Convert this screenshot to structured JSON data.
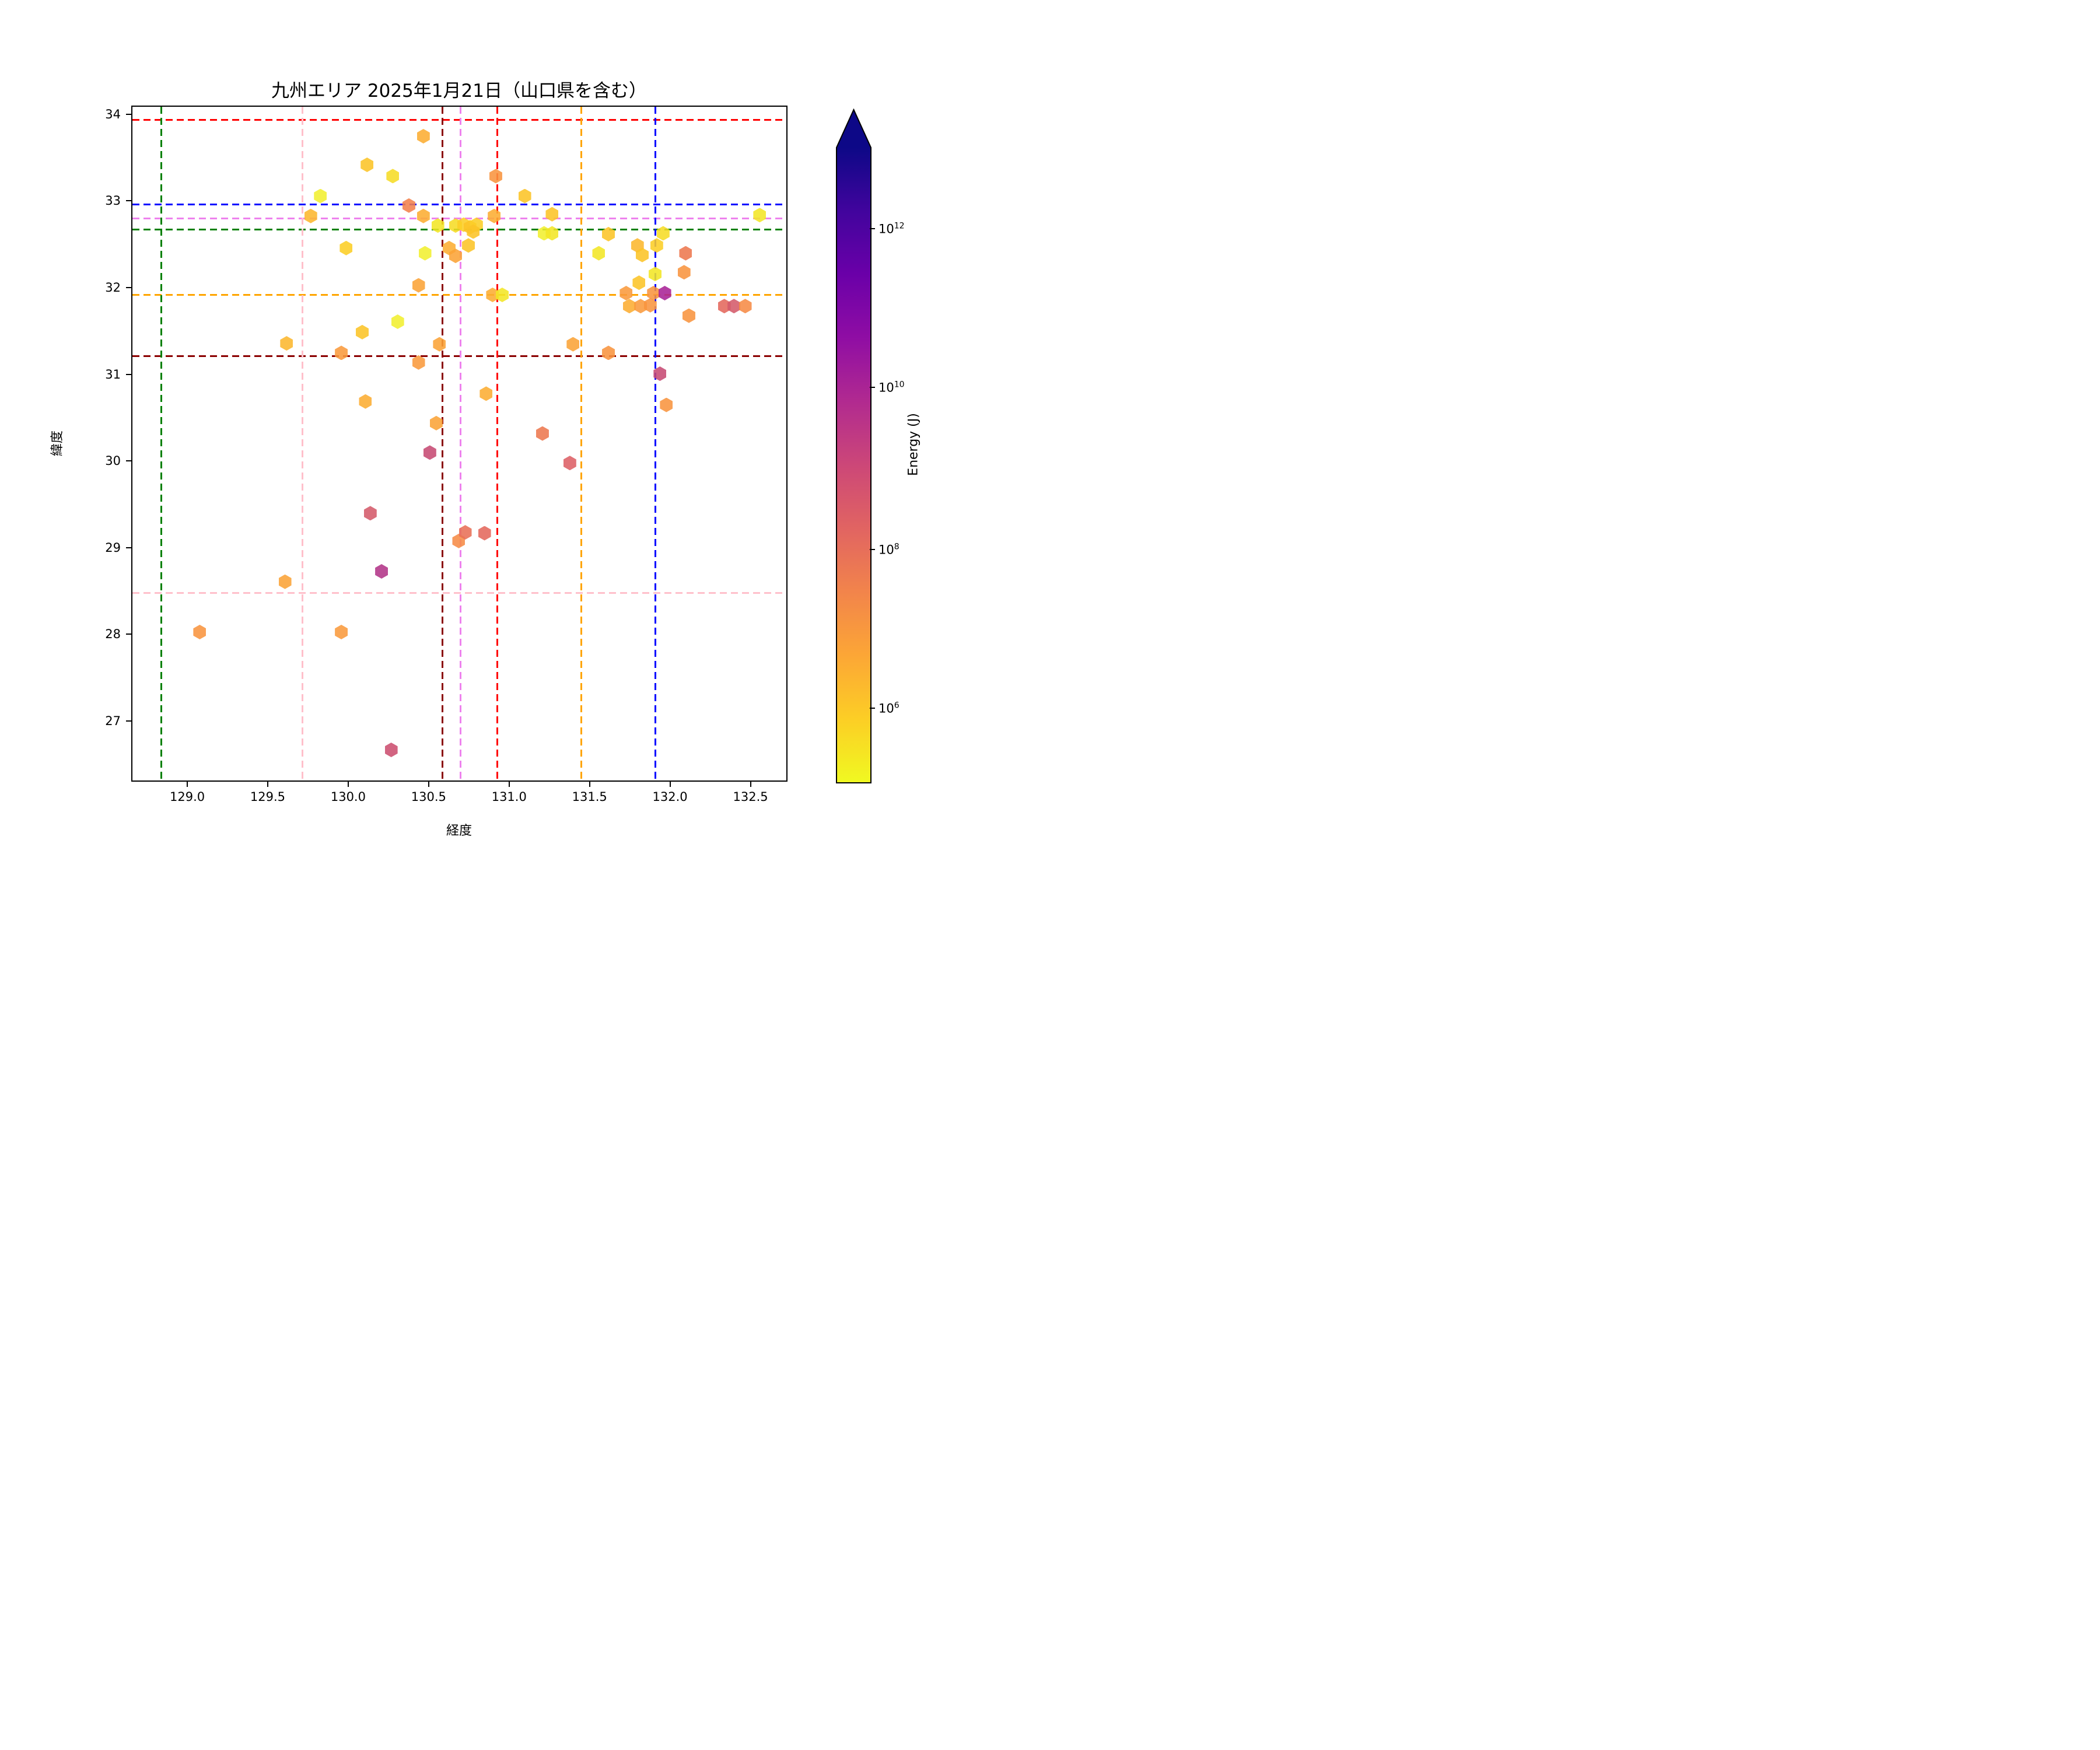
{
  "title": "九州エリア 2025年1月21日（山口県を含む）",
  "axes": {
    "xlabel": "経度",
    "ylabel": "緯度",
    "x_ticks": [
      "129.0",
      "129.5",
      "130.0",
      "130.5",
      "131.0",
      "131.5",
      "132.0",
      "132.5"
    ],
    "x_tick_values": [
      129.0,
      129.5,
      130.0,
      130.5,
      131.0,
      131.5,
      132.0,
      132.5
    ],
    "y_ticks": [
      "27",
      "28",
      "29",
      "30",
      "31",
      "32",
      "33",
      "34"
    ],
    "y_tick_values": [
      27,
      28,
      29,
      30,
      31,
      32,
      33,
      34
    ],
    "lon_range": [
      128.65,
      132.73
    ],
    "lat_range": [
      26.3,
      34.1
    ],
    "grid": "off",
    "border_color": "#000000"
  },
  "colorbar": {
    "label": "Energy (J)",
    "orientation": "vertical",
    "extend": "max",
    "scale": "log",
    "range_J": [
      100000.0,
      10000000000000.0
    ],
    "ticks": [
      {
        "base": "10",
        "exp": "12",
        "frac": 0.13
      },
      {
        "base": "10",
        "exp": "10",
        "frac": 0.38
      },
      {
        "base": "10",
        "exp": "8",
        "frac": 0.635
      },
      {
        "base": "10",
        "exp": "6",
        "frac": 0.885
      }
    ],
    "gradient": [
      {
        "o": 0.0,
        "c": "#0d0887"
      },
      {
        "o": 0.056,
        "c": "#0d0887"
      },
      {
        "o": 0.15,
        "c": "#41049d"
      },
      {
        "o": 0.244,
        "c": "#6a00a8"
      },
      {
        "o": 0.338,
        "c": "#8f0da4"
      },
      {
        "o": 0.433,
        "c": "#b12a90"
      },
      {
        "o": 0.527,
        "c": "#cc4778"
      },
      {
        "o": 0.622,
        "c": "#e16462"
      },
      {
        "o": 0.716,
        "c": "#f2844b"
      },
      {
        "o": 0.81,
        "c": "#fca636"
      },
      {
        "o": 0.905,
        "c": "#fcce25"
      },
      {
        "o": 1.0,
        "c": "#f0f921"
      }
    ]
  },
  "chart_data": {
    "type": "scatter",
    "marker": "hexagon",
    "x_field": "lon",
    "y_field": "lat",
    "color_field": "energy_J",
    "colormap": "plasma_r (log, 1e5..1e13)",
    "points": [
      {
        "lon": 130.46,
        "lat": 33.76,
        "energy_J": 3000000.0,
        "color": "#fcad32"
      },
      {
        "lon": 130.11,
        "lat": 33.43,
        "energy_J": 1100000.0,
        "color": "#fcc427"
      },
      {
        "lon": 130.27,
        "lat": 33.3,
        "energy_J": 500000.0,
        "color": "#f6dc25"
      },
      {
        "lon": 129.82,
        "lat": 33.07,
        "energy_J": 250000.0,
        "color": "#f1ef30"
      },
      {
        "lon": 130.37,
        "lat": 32.96,
        "energy_J": 30000000.0,
        "color": "#f2814b"
      },
      {
        "lon": 130.91,
        "lat": 33.3,
        "energy_J": 13000000.0,
        "color": "#f8943f"
      },
      {
        "lon": 131.09,
        "lat": 33.07,
        "energy_J": 1100000.0,
        "color": "#fcc427"
      },
      {
        "lon": 129.76,
        "lat": 32.84,
        "energy_J": 2000000.0,
        "color": "#fcb72e"
      },
      {
        "lon": 130.46,
        "lat": 32.84,
        "energy_J": 3000000.0,
        "color": "#fcad32"
      },
      {
        "lon": 130.9,
        "lat": 32.84,
        "energy_J": 3000000.0,
        "color": "#fcad32"
      },
      {
        "lon": 132.55,
        "lat": 32.85,
        "energy_J": 400000.0,
        "color": "#f3e626"
      },
      {
        "lon": 130.55,
        "lat": 32.73,
        "energy_J": 400000.0,
        "color": "#f3e626"
      },
      {
        "lon": 130.66,
        "lat": 32.73,
        "energy_J": 500000.0,
        "color": "#f6dc25"
      },
      {
        "lon": 130.71,
        "lat": 32.74,
        "energy_J": 700000.0,
        "color": "#fcce25"
      },
      {
        "lon": 130.75,
        "lat": 32.71,
        "energy_J": 1100000.0,
        "color": "#fcc427"
      },
      {
        "lon": 130.79,
        "lat": 32.74,
        "energy_J": 700000.0,
        "color": "#fcce25"
      },
      {
        "lon": 130.77,
        "lat": 32.66,
        "energy_J": 1100000.0,
        "color": "#fcc427"
      },
      {
        "lon": 131.21,
        "lat": 32.64,
        "energy_J": 250000.0,
        "color": "#f1ef30"
      },
      {
        "lon": 131.26,
        "lat": 32.64,
        "energy_J": 400000.0,
        "color": "#f3e626"
      },
      {
        "lon": 131.26,
        "lat": 32.86,
        "energy_J": 1100000.0,
        "color": "#fcc427"
      },
      {
        "lon": 131.61,
        "lat": 32.63,
        "energy_J": 1100000.0,
        "color": "#fcc427"
      },
      {
        "lon": 131.95,
        "lat": 32.64,
        "energy_J": 500000.0,
        "color": "#f6dc25"
      },
      {
        "lon": 131.91,
        "lat": 32.5,
        "energy_J": 700000.0,
        "color": "#fcce25"
      },
      {
        "lon": 131.79,
        "lat": 32.5,
        "energy_J": 2000000.0,
        "color": "#fcb72e"
      },
      {
        "lon": 131.82,
        "lat": 32.39,
        "energy_J": 1100000.0,
        "color": "#fcc427"
      },
      {
        "lon": 131.55,
        "lat": 32.41,
        "energy_J": 400000.0,
        "color": "#f3e626"
      },
      {
        "lon": 130.47,
        "lat": 32.41,
        "energy_J": 250000.0,
        "color": "#f1ef30"
      },
      {
        "lon": 129.98,
        "lat": 32.47,
        "energy_J": 700000.0,
        "color": "#fcce25"
      },
      {
        "lon": 130.62,
        "lat": 32.47,
        "energy_J": 3000000.0,
        "color": "#fcad32"
      },
      {
        "lon": 130.66,
        "lat": 32.38,
        "energy_J": 6000000.0,
        "color": "#fba337"
      },
      {
        "lon": 130.74,
        "lat": 32.5,
        "energy_J": 1100000.0,
        "color": "#fcc427"
      },
      {
        "lon": 132.09,
        "lat": 32.41,
        "energy_J": 50000000.0,
        "color": "#ed774f"
      },
      {
        "lon": 132.08,
        "lat": 32.19,
        "energy_J": 13000000.0,
        "color": "#f8943f"
      },
      {
        "lon": 131.9,
        "lat": 32.17,
        "energy_J": 400000.0,
        "color": "#f3e626"
      },
      {
        "lon": 131.8,
        "lat": 32.07,
        "energy_J": 1100000.0,
        "color": "#fcc427"
      },
      {
        "lon": 130.43,
        "lat": 32.04,
        "energy_J": 6000000.0,
        "color": "#fba337"
      },
      {
        "lon": 130.89,
        "lat": 31.93,
        "energy_J": 3000000.0,
        "color": "#fcad32"
      },
      {
        "lon": 130.95,
        "lat": 31.93,
        "energy_J": 400000.0,
        "color": "#f3e626"
      },
      {
        "lon": 131.72,
        "lat": 31.95,
        "energy_J": 9000000.0,
        "color": "#f99a3c"
      },
      {
        "lon": 131.89,
        "lat": 31.95,
        "energy_J": 13000000.0,
        "color": "#f8943f"
      },
      {
        "lon": 131.96,
        "lat": 31.95,
        "energy_J": 20000000000.0,
        "color": "#a82296"
      },
      {
        "lon": 131.74,
        "lat": 31.8,
        "energy_J": 3000000.0,
        "color": "#fcad32"
      },
      {
        "lon": 131.81,
        "lat": 31.8,
        "energy_J": 9000000.0,
        "color": "#f99a3c"
      },
      {
        "lon": 131.87,
        "lat": 31.81,
        "energy_J": 13000000.0,
        "color": "#f8943f"
      },
      {
        "lon": 132.33,
        "lat": 31.8,
        "energy_J": 120000000.0,
        "color": "#e4685c"
      },
      {
        "lon": 132.39,
        "lat": 31.8,
        "energy_J": 350000000.0,
        "color": "#d45a6a"
      },
      {
        "lon": 132.46,
        "lat": 31.8,
        "energy_J": 20000000.0,
        "color": "#f68b46"
      },
      {
        "lon": 132.11,
        "lat": 31.69,
        "energy_J": 13000000.0,
        "color": "#f8943f"
      },
      {
        "lon": 130.3,
        "lat": 31.62,
        "energy_J": 250000.0,
        "color": "#f1ef30"
      },
      {
        "lon": 130.08,
        "lat": 31.5,
        "energy_J": 1100000.0,
        "color": "#fcc427"
      },
      {
        "lon": 129.61,
        "lat": 31.37,
        "energy_J": 2000000.0,
        "color": "#fcb72e"
      },
      {
        "lon": 129.95,
        "lat": 31.26,
        "energy_J": 9000000.0,
        "color": "#f99a3c"
      },
      {
        "lon": 130.56,
        "lat": 31.36,
        "energy_J": 6000000.0,
        "color": "#fba337"
      },
      {
        "lon": 130.43,
        "lat": 31.15,
        "energy_J": 9000000.0,
        "color": "#f99a3c"
      },
      {
        "lon": 131.39,
        "lat": 31.36,
        "energy_J": 6000000.0,
        "color": "#fba337"
      },
      {
        "lon": 131.61,
        "lat": 31.26,
        "energy_J": 13000000.0,
        "color": "#f8943f"
      },
      {
        "lon": 131.93,
        "lat": 31.02,
        "energy_J": 900000000.0,
        "color": "#c64a73"
      },
      {
        "lon": 130.85,
        "lat": 30.79,
        "energy_J": 3000000.0,
        "color": "#fcad32"
      },
      {
        "lon": 131.97,
        "lat": 30.66,
        "energy_J": 13000000.0,
        "color": "#f8943f"
      },
      {
        "lon": 130.1,
        "lat": 30.7,
        "energy_J": 3000000.0,
        "color": "#fcad32"
      },
      {
        "lon": 130.54,
        "lat": 30.45,
        "energy_J": 6000000.0,
        "color": "#fba337"
      },
      {
        "lon": 130.5,
        "lat": 30.11,
        "energy_J": 900000000.0,
        "color": "#c64a73"
      },
      {
        "lon": 131.2,
        "lat": 30.33,
        "energy_J": 50000000.0,
        "color": "#ed774f"
      },
      {
        "lon": 131.37,
        "lat": 29.99,
        "energy_J": 200000000.0,
        "color": "#dd6065"
      },
      {
        "lon": 130.68,
        "lat": 29.09,
        "energy_J": 20000000.0,
        "color": "#f68b46"
      },
      {
        "lon": 130.72,
        "lat": 29.19,
        "energy_J": 80000000.0,
        "color": "#e86f57"
      },
      {
        "lon": 130.84,
        "lat": 29.18,
        "energy_J": 120000000.0,
        "color": "#e4685c"
      },
      {
        "lon": 130.13,
        "lat": 29.41,
        "energy_J": 350000000.0,
        "color": "#d45a6a"
      },
      {
        "lon": 129.6,
        "lat": 28.62,
        "energy_J": 6000000.0,
        "color": "#fba337"
      },
      {
        "lon": 130.2,
        "lat": 28.74,
        "energy_J": 5000000000.0,
        "color": "#b23487"
      },
      {
        "lon": 129.07,
        "lat": 28.04,
        "energy_J": 13000000.0,
        "color": "#f8943f"
      },
      {
        "lon": 129.95,
        "lat": 28.04,
        "energy_J": 9000000.0,
        "color": "#f99a3c"
      },
      {
        "lon": 130.26,
        "lat": 26.68,
        "energy_J": 600000000.0,
        "color": "#cc4f70"
      }
    ],
    "hlines": [
      {
        "lat": 33.95,
        "color": "#ff0000",
        "name": "red"
      },
      {
        "lat": 32.97,
        "color": "#0000ff",
        "name": "blue"
      },
      {
        "lat": 32.81,
        "color": "#ee82ee",
        "name": "violet"
      },
      {
        "lat": 32.68,
        "color": "#008000",
        "name": "green"
      },
      {
        "lat": 31.93,
        "color": "#ffa500",
        "name": "orange"
      },
      {
        "lat": 31.22,
        "color": "#8b0000",
        "name": "darkred"
      },
      {
        "lat": 28.49,
        "color": "#ffc0cb",
        "name": "pink"
      }
    ],
    "vlines": [
      {
        "lon": 128.83,
        "color": "#008000",
        "name": "green"
      },
      {
        "lon": 129.71,
        "color": "#ffc0cb",
        "name": "pink"
      },
      {
        "lon": 130.58,
        "color": "#8b0000",
        "name": "darkred"
      },
      {
        "lon": 130.69,
        "color": "#ee82ee",
        "name": "violet"
      },
      {
        "lon": 130.92,
        "color": "#ff0000",
        "name": "red"
      },
      {
        "lon": 131.44,
        "color": "#ffa500",
        "name": "orange"
      },
      {
        "lon": 131.9,
        "color": "#0000ff",
        "name": "blue"
      }
    ]
  }
}
